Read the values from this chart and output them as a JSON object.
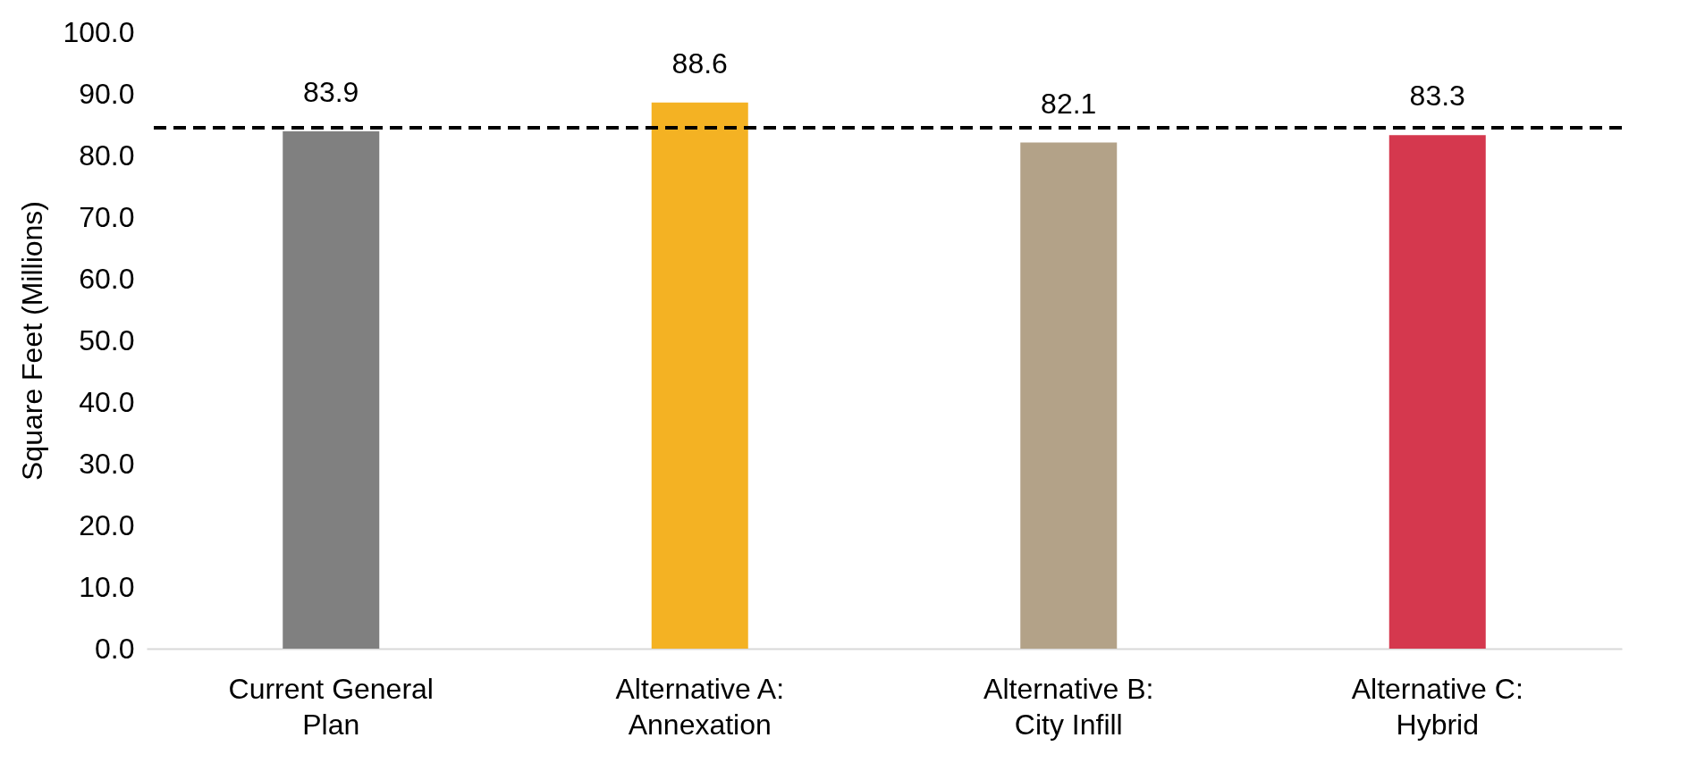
{
  "chart_data": {
    "type": "bar",
    "ylabel": "Square  Feet (Millions)",
    "categories": [
      "Current General Plan",
      "Alternative A: Annexation",
      "Alternative B: City Infill",
      "Alternative C: Hybrid"
    ],
    "values": [
      83.9,
      88.6,
      82.1,
      83.3
    ],
    "colors": [
      "#808080",
      "#f4b223",
      "#b3a288",
      "#d5384e"
    ],
    "data_labels": true,
    "ylim": [
      0,
      100
    ],
    "yticks": [
      {
        "value": 0,
        "label": "0.0"
      },
      {
        "value": 10,
        "label": "10.0"
      },
      {
        "value": 20,
        "label": "20.0"
      },
      {
        "value": 30,
        "label": "30.0"
      },
      {
        "value": 40,
        "label": "40.0"
      },
      {
        "value": 50,
        "label": "50.0"
      },
      {
        "value": 60,
        "label": "60.0"
      },
      {
        "value": 70,
        "label": "70.0"
      },
      {
        "value": 80,
        "label": "80.0"
      },
      {
        "value": 90,
        "label": "90.0"
      },
      {
        "value": 100,
        "label": "100.0"
      }
    ],
    "ref_lines": [
      {
        "axis": "y",
        "value": 84.5,
        "color": "#000000",
        "line_style": "dashed"
      }
    ],
    "grid": false
  }
}
